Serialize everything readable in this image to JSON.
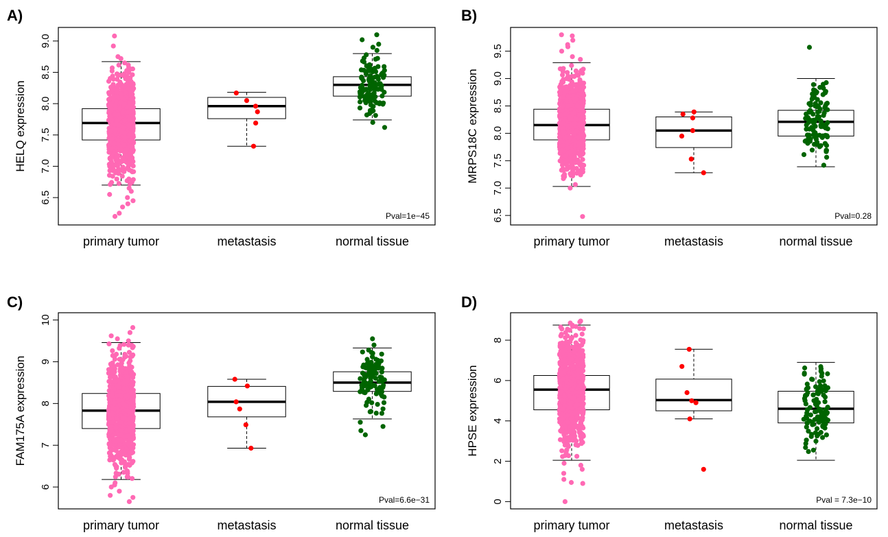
{
  "chart_data": [
    {
      "type": "boxplot",
      "panel_label": "A)",
      "ylabel": "HELQ expression",
      "ylim": [
        6.18,
        9.1
      ],
      "yticks": [
        "6.5",
        "7.0",
        "7.5",
        "8.0",
        "8.5",
        "9.0"
      ],
      "categories": [
        "primary tumor",
        "metastasis",
        "normal tissue"
      ],
      "pval": "Pval=1e−45",
      "boxes": [
        {
          "category": "primary tumor",
          "whisker_low": 6.7,
          "q1": 7.42,
          "median": 7.69,
          "q3": 7.92,
          "whisker_high": 8.67,
          "color": "#ff69b4",
          "n_points": 850,
          "outliers": [
            6.2,
            6.25,
            6.35,
            6.4,
            6.45,
            6.5,
            6.55,
            6.6,
            6.65,
            8.72,
            8.75,
            8.92,
            9.08
          ]
        },
        {
          "category": "metastasis",
          "whisker_low": 7.32,
          "q1": 7.76,
          "median": 7.96,
          "q3": 8.1,
          "whisker_high": 8.18,
          "color": "#ff0000",
          "points": [
            7.32,
            7.69,
            7.87,
            7.96,
            8.05,
            8.17
          ]
        },
        {
          "category": "normal tissue",
          "whisker_low": 7.74,
          "q1": 8.12,
          "median": 8.3,
          "q3": 8.43,
          "whisker_high": 8.8,
          "color": "#006400",
          "n_points": 110,
          "outliers": [
            7.62,
            7.7,
            8.85,
            8.9,
            8.95,
            9.02,
            9.1
          ]
        }
      ]
    },
    {
      "type": "boxplot",
      "panel_label": "B)",
      "ylabel": "MRPS18C expression",
      "ylim": [
        6.46,
        9.8
      ],
      "yticks": [
        "6.5",
        "7.0",
        "7.5",
        "8.0",
        "8.5",
        "9.0",
        "9.5"
      ],
      "categories": [
        "primary tumor",
        "metastasis",
        "normal tissue"
      ],
      "pval": "Pval=0.28",
      "boxes": [
        {
          "category": "primary tumor",
          "whisker_low": 7.03,
          "q1": 7.88,
          "median": 8.15,
          "q3": 8.44,
          "whisker_high": 9.29,
          "color": "#ff69b4",
          "n_points": 850,
          "outliers": [
            6.48,
            7.0,
            9.35,
            9.4,
            9.5,
            9.58,
            9.62,
            9.7,
            9.78,
            9.8
          ]
        },
        {
          "category": "metastasis",
          "whisker_low": 7.28,
          "q1": 7.74,
          "median": 8.05,
          "q3": 8.3,
          "whisker_high": 8.39,
          "color": "#ff0000",
          "points": [
            7.28,
            7.53,
            7.95,
            8.05,
            8.28,
            8.35,
            8.39
          ]
        },
        {
          "category": "normal tissue",
          "whisker_low": 7.39,
          "q1": 7.95,
          "median": 8.21,
          "q3": 8.42,
          "whisker_high": 9.0,
          "color": "#006400",
          "n_points": 110,
          "outliers": [
            9.57
          ]
        }
      ]
    },
    {
      "type": "boxplot",
      "panel_label": "C)",
      "ylabel": "FAM175A expression",
      "ylim": [
        5.65,
        10.0
      ],
      "yticks": [
        "6",
        "7",
        "8",
        "9",
        "10"
      ],
      "categories": [
        "primary tumor",
        "metastasis",
        "normal tissue"
      ],
      "pval": "Pval=6.6e−31",
      "boxes": [
        {
          "category": "primary tumor",
          "whisker_low": 6.18,
          "q1": 7.4,
          "median": 7.83,
          "q3": 8.24,
          "whisker_high": 9.46,
          "color": "#ff69b4",
          "n_points": 850,
          "outliers": [
            5.65,
            5.75,
            5.8,
            5.9,
            6.0,
            6.05,
            6.1,
            9.5,
            9.55,
            9.62,
            9.7,
            9.82
          ]
        },
        {
          "category": "metastasis",
          "whisker_low": 6.93,
          "q1": 7.68,
          "median": 8.04,
          "q3": 8.41,
          "whisker_high": 8.58,
          "color": "#ff0000",
          "points": [
            6.93,
            7.49,
            7.87,
            8.04,
            8.42,
            8.58
          ]
        },
        {
          "category": "normal tissue",
          "whisker_low": 7.63,
          "q1": 8.29,
          "median": 8.5,
          "q3": 8.76,
          "whisker_high": 9.33,
          "color": "#006400",
          "n_points": 110,
          "outliers": [
            7.25,
            7.35,
            7.45,
            7.55,
            9.4,
            9.55
          ]
        }
      ]
    },
    {
      "type": "boxplot",
      "panel_label": "D)",
      "ylabel": "HPSE expression",
      "ylim": [
        0,
        9.0
      ],
      "yticks": [
        "0",
        "2",
        "4",
        "6",
        "8"
      ],
      "categories": [
        "primary tumor",
        "metastasis",
        "normal tissue"
      ],
      "pval": "Pval = 7.3e−10",
      "boxes": [
        {
          "category": "primary tumor",
          "whisker_low": 2.05,
          "q1": 4.55,
          "median": 5.55,
          "q3": 6.25,
          "whisker_high": 8.75,
          "color": "#ff69b4",
          "n_points": 850,
          "outliers": [
            0.0,
            0.9,
            0.95,
            1.1,
            1.4,
            1.6,
            1.8,
            1.9,
            8.85,
            8.9,
            8.95
          ]
        },
        {
          "category": "metastasis",
          "whisker_low": 4.1,
          "q1": 4.5,
          "median": 5.03,
          "q3": 6.07,
          "whisker_high": 7.55,
          "color": "#ff0000",
          "points": [
            1.6,
            4.1,
            4.9,
            5.0,
            5.4,
            6.7,
            7.55
          ]
        },
        {
          "category": "normal tissue",
          "whisker_low": 2.05,
          "q1": 3.9,
          "median": 4.6,
          "q3": 5.47,
          "whisker_high": 6.9,
          "color": "#006400",
          "n_points": 110,
          "outliers": []
        }
      ]
    }
  ]
}
